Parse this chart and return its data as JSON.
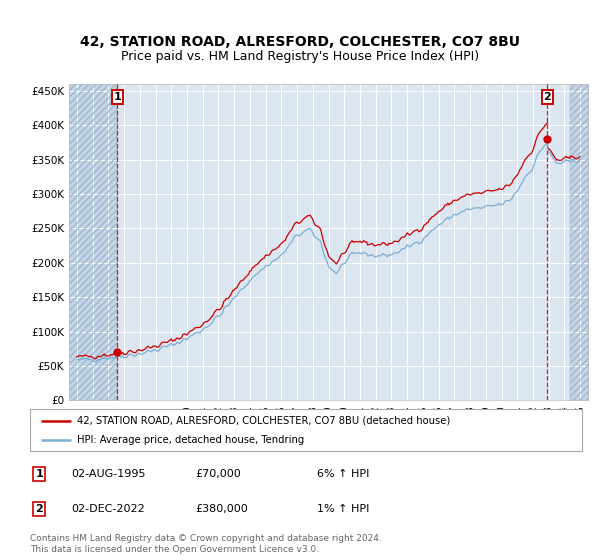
{
  "title": "42, STATION ROAD, ALRESFORD, COLCHESTER, CO7 8BU",
  "subtitle": "Price paid vs. HM Land Registry's House Price Index (HPI)",
  "title_fontsize": 10,
  "subtitle_fontsize": 9,
  "ylim": [
    0,
    460000
  ],
  "yticks": [
    0,
    50000,
    100000,
    150000,
    200000,
    250000,
    300000,
    350000,
    400000,
    450000
  ],
  "ytick_labels": [
    "£0",
    "£50K",
    "£100K",
    "£150K",
    "£200K",
    "£250K",
    "£300K",
    "£350K",
    "£400K",
    "£450K"
  ],
  "xlim_start": 1992.5,
  "xlim_end": 2025.5,
  "xticks": [
    1993,
    1994,
    1995,
    1996,
    1997,
    1998,
    1999,
    2000,
    2001,
    2002,
    2003,
    2004,
    2005,
    2006,
    2007,
    2008,
    2009,
    2010,
    2011,
    2012,
    2013,
    2014,
    2015,
    2016,
    2017,
    2018,
    2019,
    2020,
    2021,
    2022,
    2023,
    2024,
    2025
  ],
  "background_color": "#ffffff",
  "plot_bg_color": "#dce6f0",
  "hatch_color": "#c5d5e8",
  "grid_color": "#ffffff",
  "red_line_color": "#cc0000",
  "blue_line_color": "#7bafd4",
  "sale1_t": 1995.583,
  "sale1_p": 70000,
  "sale2_t": 2022.917,
  "sale2_p": 380000,
  "hatch_end": 1995.583,
  "hatch_start2": 2024.33,
  "legend_line1": "42, STATION ROAD, ALRESFORD, COLCHESTER, CO7 8BU (detached house)",
  "legend_line2": "HPI: Average price, detached house, Tendring",
  "note1_label": "1",
  "note1_date": "02-AUG-1995",
  "note1_price": "£70,000",
  "note1_hpi": "6% ↑ HPI",
  "note2_label": "2",
  "note2_date": "02-DEC-2022",
  "note2_price": "£380,000",
  "note2_hpi": "1% ↑ HPI",
  "footer": "Contains HM Land Registry data © Crown copyright and database right 2024.\nThis data is licensed under the Open Government Licence v3.0."
}
